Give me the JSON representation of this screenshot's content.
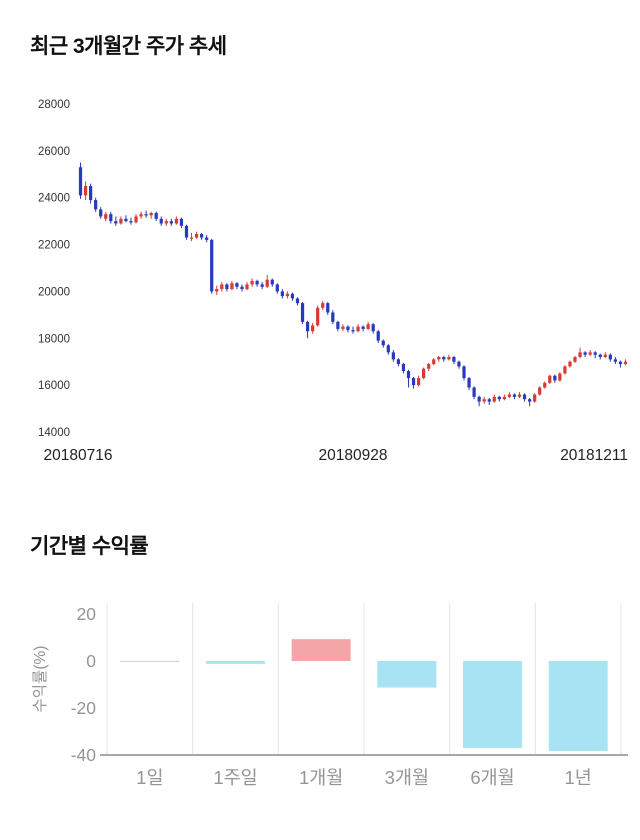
{
  "price_section": {
    "title": "최근 3개월간 주가 추세"
  },
  "returns_section": {
    "title": "기간별 수익률"
  },
  "chart_data": [
    {
      "type": "candlestick",
      "title": "최근 3개월간 주가 추세",
      "x_tick_labels": [
        "20180716",
        "20180928",
        "20181211"
      ],
      "y_ticks": [
        28000,
        26000,
        24000,
        22000,
        20000,
        18000,
        16000,
        14000
      ],
      "ylim": [
        14000,
        28000
      ],
      "grid": false,
      "colors": {
        "up": "#d63c34",
        "down": "#2939bd"
      },
      "ohlc": [
        [
          25300,
          25500,
          23950,
          24100
        ],
        [
          24100,
          24700,
          23900,
          24500
        ],
        [
          24500,
          24600,
          23750,
          23900
        ],
        [
          23900,
          24000,
          23400,
          23500
        ],
        [
          23500,
          23600,
          23100,
          23200
        ],
        [
          23100,
          23400,
          23000,
          23300
        ],
        [
          23300,
          23400,
          22900,
          23000
        ],
        [
          23000,
          23200,
          22800,
          22900
        ],
        [
          22900,
          23200,
          22850,
          23100
        ],
        [
          23100,
          23250,
          22950,
          23000
        ],
        [
          23000,
          23150,
          22850,
          22950
        ],
        [
          22950,
          23300,
          22900,
          23200
        ],
        [
          23200,
          23400,
          23100,
          23300
        ],
        [
          23300,
          23450,
          23150,
          23250
        ],
        [
          23250,
          23400,
          23100,
          23350
        ],
        [
          23350,
          23400,
          23000,
          23100
        ],
        [
          23100,
          23200,
          22800,
          22900
        ],
        [
          22900,
          23100,
          22800,
          23000
        ],
        [
          23000,
          23100,
          22800,
          22900
        ],
        [
          22900,
          23200,
          22850,
          23100
        ],
        [
          23100,
          23150,
          22700,
          22800
        ],
        [
          22800,
          22850,
          22200,
          22300
        ],
        [
          22300,
          22500,
          22150,
          22300
        ],
        [
          22300,
          22550,
          22250,
          22450
        ],
        [
          22450,
          22500,
          22200,
          22300
        ],
        [
          22300,
          22400,
          22100,
          22200
        ],
        [
          22200,
          22250,
          19900,
          20000
        ],
        [
          20000,
          20250,
          19850,
          20100
        ],
        [
          20100,
          20400,
          20000,
          20300
        ],
        [
          20300,
          20350,
          20000,
          20100
        ],
        [
          20100,
          20450,
          20050,
          20350
        ],
        [
          20350,
          20400,
          20100,
          20200
        ],
        [
          20200,
          20300,
          20000,
          20100
        ],
        [
          20100,
          20400,
          20050,
          20300
        ],
        [
          20300,
          20550,
          20200,
          20450
        ],
        [
          20450,
          20500,
          20200,
          20300
        ],
        [
          20300,
          20400,
          20100,
          20200
        ],
        [
          20200,
          20700,
          20150,
          20500
        ],
        [
          20500,
          20550,
          20200,
          20300
        ],
        [
          20300,
          20350,
          19900,
          20000
        ],
        [
          20000,
          20100,
          19700,
          19800
        ],
        [
          19800,
          20000,
          19700,
          19900
        ],
        [
          19900,
          19950,
          19600,
          19700
        ],
        [
          19700,
          19750,
          19400,
          19500
        ],
        [
          19500,
          19550,
          18600,
          18700
        ],
        [
          18700,
          18750,
          18000,
          18300
        ],
        [
          18300,
          18650,
          18200,
          18550
        ],
        [
          18550,
          19400,
          18500,
          19300
        ],
        [
          19300,
          19600,
          19200,
          19500
        ],
        [
          19500,
          19550,
          19000,
          19100
        ],
        [
          19100,
          19200,
          18600,
          18700
        ],
        [
          18700,
          18750,
          18300,
          18400
        ],
        [
          18400,
          18600,
          18300,
          18500
        ],
        [
          18500,
          18550,
          18250,
          18350
        ],
        [
          18350,
          18500,
          18200,
          18300
        ],
        [
          18300,
          18600,
          18250,
          18500
        ],
        [
          18500,
          18550,
          18300,
          18400
        ],
        [
          18400,
          18700,
          18350,
          18600
        ],
        [
          18600,
          18650,
          18200,
          18300
        ],
        [
          18300,
          18350,
          17800,
          17900
        ],
        [
          17900,
          17950,
          17600,
          17700
        ],
        [
          17700,
          17750,
          17300,
          17400
        ],
        [
          17400,
          17500,
          17000,
          17100
        ],
        [
          17100,
          17150,
          16800,
          16900
        ],
        [
          16900,
          16950,
          16500,
          16600
        ],
        [
          16600,
          16650,
          15900,
          16300
        ],
        [
          16300,
          16350,
          15850,
          16000
        ],
        [
          16000,
          16400,
          15950,
          16300
        ],
        [
          16300,
          16750,
          16250,
          16700
        ],
        [
          16700,
          16950,
          16600,
          16900
        ],
        [
          16900,
          17150,
          16850,
          17100
        ],
        [
          17100,
          17250,
          17000,
          17200
        ],
        [
          17200,
          17250,
          17000,
          17100
        ],
        [
          17100,
          17300,
          17050,
          17200
        ],
        [
          17200,
          17250,
          16900,
          17000
        ],
        [
          17000,
          17050,
          16700,
          16800
        ],
        [
          16800,
          16850,
          16200,
          16300
        ],
        [
          16300,
          16350,
          15800,
          15900
        ],
        [
          15900,
          15950,
          15400,
          15500
        ],
        [
          15500,
          15550,
          15100,
          15300
        ],
        [
          15300,
          15500,
          15200,
          15400
        ],
        [
          15400,
          15450,
          15150,
          15300
        ],
        [
          15300,
          15600,
          15250,
          15500
        ],
        [
          15500,
          15550,
          15300,
          15400
        ],
        [
          15400,
          15600,
          15350,
          15500
        ],
        [
          15500,
          15700,
          15450,
          15600
        ],
        [
          15600,
          15650,
          15400,
          15500
        ],
        [
          15500,
          15700,
          15450,
          15600
        ],
        [
          15600,
          15650,
          15300,
          15400
        ],
        [
          15400,
          15450,
          15100,
          15300
        ],
        [
          15300,
          15650,
          15250,
          15600
        ],
        [
          15600,
          15950,
          15550,
          15900
        ],
        [
          15900,
          16150,
          15850,
          16100
        ],
        [
          16100,
          16450,
          16050,
          16400
        ],
        [
          16400,
          16450,
          16100,
          16200
        ],
        [
          16200,
          16550,
          16150,
          16500
        ],
        [
          16500,
          16850,
          16450,
          16800
        ],
        [
          16800,
          17050,
          16750,
          17000
        ],
        [
          17000,
          17250,
          16950,
          17200
        ],
        [
          17200,
          17600,
          17150,
          17400
        ],
        [
          17400,
          17450,
          17200,
          17300
        ],
        [
          17300,
          17500,
          17250,
          17400
        ],
        [
          17400,
          17450,
          17150,
          17300
        ],
        [
          17300,
          17350,
          17100,
          17200
        ],
        [
          17200,
          17400,
          17150,
          17300
        ],
        [
          17300,
          17350,
          17000,
          17100
        ],
        [
          17100,
          17200,
          16900,
          17000
        ],
        [
          17000,
          17050,
          16750,
          16900
        ],
        [
          16900,
          17100,
          16850,
          17000
        ]
      ]
    },
    {
      "type": "bar",
      "title": "기간별 수익률",
      "categories": [
        "1일",
        "1주일",
        "1개월",
        "3개월",
        "6개월",
        "1년"
      ],
      "values": [
        -0.4,
        -1.2,
        9.3,
        -11.3,
        -37.0,
        -38.3
      ],
      "ylabel": "수익률(%)",
      "y_ticks": [
        20,
        0,
        -20,
        -40
      ],
      "ylim": [
        -40.5,
        24.7
      ],
      "grid": "vertical",
      "legend": "none",
      "colors": {
        "positive": "#f3a5a8",
        "negative": "#a7e3f2",
        "grid": "#e4e4e4",
        "axis": "#a8a8a8",
        "label": "#959595"
      }
    }
  ]
}
